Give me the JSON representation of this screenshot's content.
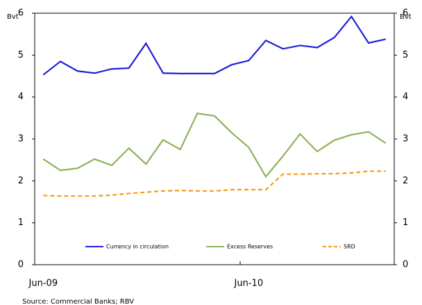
{
  "chart_data": {
    "type": "line",
    "source": "Source: Commercial Banks; RBV",
    "ylabel": "Bvt",
    "y2label": "Bvt",
    "categories": [
      "Jun-09",
      null,
      null,
      null,
      null,
      null,
      null,
      null,
      null,
      null,
      null,
      null,
      "Jun-10",
      null,
      null,
      null,
      null,
      null,
      null,
      null,
      null
    ],
    "ylim": [
      0,
      6
    ],
    "yticks": [
      0,
      1,
      2,
      3,
      4,
      5,
      6
    ],
    "y2lim": [
      0,
      6
    ],
    "y2ticks": [
      0,
      1,
      2,
      3,
      4,
      5,
      6
    ],
    "legend": "bottom",
    "series": [
      {
        "name": "Currency in circulation",
        "color": "#1f1fd6",
        "dash": "solid",
        "values": [
          4.53,
          4.85,
          4.62,
          4.57,
          4.67,
          4.69,
          5.28,
          4.57,
          4.56,
          4.56,
          4.56,
          4.77,
          4.87,
          5.35,
          5.15,
          5.23,
          5.18,
          5.42,
          5.92,
          5.29,
          5.38
        ]
      },
      {
        "name": "Excess Reserves",
        "color": "#8db255",
        "dash": "solid",
        "values": [
          2.52,
          2.25,
          2.3,
          2.52,
          2.37,
          2.78,
          2.4,
          2.98,
          2.75,
          3.61,
          3.55,
          3.15,
          2.8,
          2.1,
          2.59,
          3.12,
          2.7,
          2.97,
          3.1,
          3.17,
          2.9
        ]
      },
      {
        "name": "SRD",
        "color": "#f59a12",
        "dash": "dashed",
        "values": [
          1.65,
          1.64,
          1.64,
          1.64,
          1.66,
          1.7,
          1.73,
          1.76,
          1.77,
          1.76,
          1.76,
          1.79,
          1.79,
          1.79,
          2.16,
          2.16,
          2.17,
          2.17,
          2.19,
          2.23,
          2.23
        ]
      }
    ]
  }
}
